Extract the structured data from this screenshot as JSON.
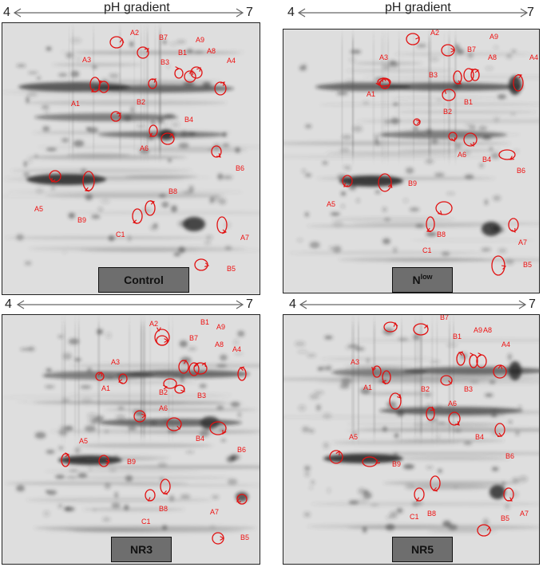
{
  "axes": {
    "top_left": {
      "start": "4",
      "end": "7",
      "title": "pH gradient"
    },
    "top_right": {
      "start": "4",
      "end": "7",
      "title": "pH gradient"
    },
    "bot_left": {
      "start": "4",
      "end": "7",
      "title": ""
    },
    "bot_right": {
      "start": "4",
      "end": "7",
      "title": ""
    }
  },
  "panels": {
    "control": {
      "label": "Control"
    },
    "nlow": {
      "label_main": "N",
      "label_sup": "low"
    },
    "nr3": {
      "label": "NR3"
    },
    "nr5": {
      "label": "NR5"
    }
  },
  "spots": {
    "control": [
      "A1",
      "A2",
      "A3",
      "A4",
      "A5",
      "A6",
      "A7",
      "A8",
      "A9",
      "B1",
      "B2",
      "B3",
      "B4",
      "B5",
      "B6",
      "B7",
      "B8",
      "B9",
      "C1"
    ],
    "nlow": [
      "A1",
      "A2",
      "A3",
      "A4",
      "A5",
      "A6",
      "A7",
      "A8",
      "A9",
      "B1",
      "B2",
      "B3",
      "B4",
      "B5",
      "B6",
      "B7",
      "B8",
      "B9",
      "C1"
    ],
    "nr3": [
      "A1",
      "A2",
      "A3",
      "A4",
      "A5",
      "A6",
      "A7",
      "A8",
      "A9",
      "B1",
      "B2",
      "B3",
      "B4",
      "B5",
      "B6",
      "B7",
      "B8",
      "B9",
      "C1"
    ],
    "nr5": [
      "A1",
      "A2",
      "A3",
      "A4",
      "A5",
      "A6",
      "A7",
      "A8",
      "A9",
      "B1",
      "B2",
      "B3",
      "B4",
      "B5",
      "B6",
      "B7",
      "B8",
      "B9",
      "C1"
    ]
  },
  "colors": {
    "annotation": "#e11111",
    "gel_bg": "#dcdcdc",
    "tag_bg": "#6e6e6e"
  }
}
